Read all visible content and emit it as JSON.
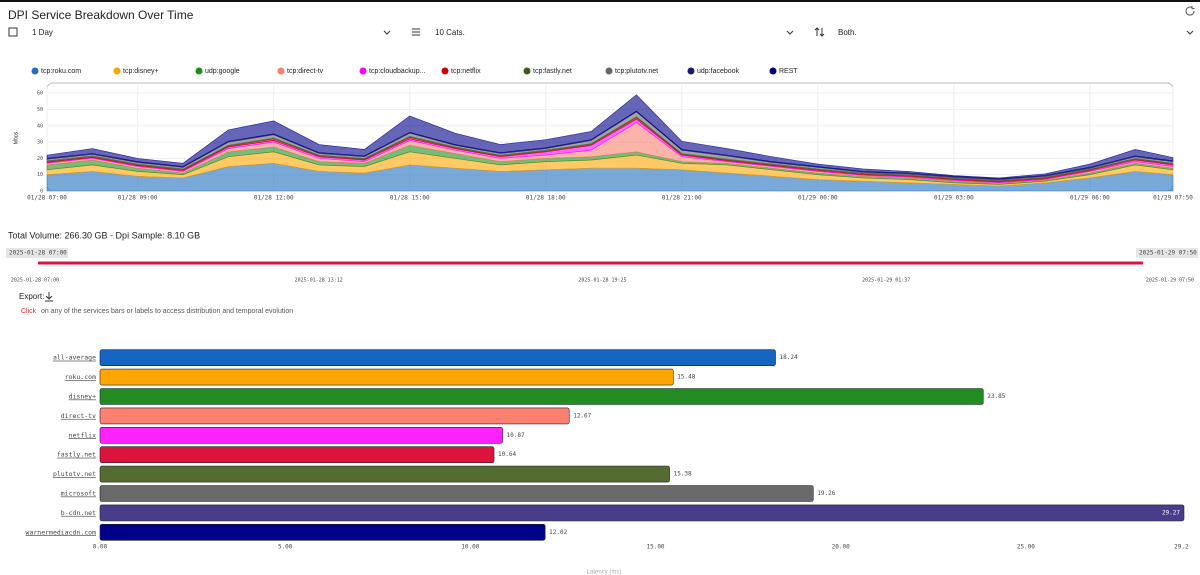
{
  "header": {
    "title": "DPI Service Breakdown Over Time",
    "period": "1 Day",
    "cats": "10 Cats.",
    "direction": "Both."
  },
  "summary": "Total Volume: 266.30 GB - Dpi Sample: 8.10 GB",
  "range": {
    "start": "2025-01-28 07:00",
    "end": "2025-01-29 07:50",
    "ticks": [
      "2025-01-28 07:00",
      "2025-01-28 13:12",
      "2025-01-28 19:25",
      "2025-01-29 01:37",
      "2025-01-29 07:50"
    ]
  },
  "export": "Export:",
  "hint": {
    "action": "Click",
    "text": "on any of the services bars or labels to access distribution and temporal evolution"
  },
  "chart_data": [
    {
      "type": "area",
      "stacked": true,
      "ylabel": "Mbps",
      "ylim": [
        0,
        65
      ],
      "yticks": [
        0,
        10,
        20,
        30,
        40,
        50,
        60
      ],
      "grid": true,
      "x": [
        "01/28 07:00",
        "01/28 08:00",
        "01/28 09:00",
        "01/28 10:00",
        "01/28 11:00",
        "01/28 12:00",
        "01/28 13:00",
        "01/28 14:00",
        "01/28 15:00",
        "01/28 16:00",
        "01/28 17:00",
        "01/28 18:00",
        "01/28 19:00",
        "01/28 20:00",
        "01/28 21:00",
        "01/28 22:00",
        "01/28 23:00",
        "01/29 00:00",
        "01/29 01:00",
        "01/29 02:00",
        "01/29 03:00",
        "01/29 04:00",
        "01/29 05:00",
        "01/29 06:00",
        "01/29 07:00",
        "01/29 07:50"
      ],
      "xticks": [
        "01/28 07:00",
        "01/28 09:00",
        "01/28 12:00",
        "01/28 15:00",
        "01/28 18:00",
        "01/28 21:00",
        "01/29 00:00",
        "01/29 03:00",
        "01/29 06:00",
        "01/29 07:50"
      ],
      "series": [
        {
          "name": "tcp:roku.com",
          "color": "#1f6fbf",
          "values": [
            10,
            12,
            9,
            8,
            15,
            17,
            12,
            11,
            16,
            14,
            12,
            13,
            14,
            14,
            13,
            11,
            9,
            7,
            6,
            5,
            4,
            3,
            5,
            8,
            12,
            10
          ]
        },
        {
          "name": "tcp:disney+",
          "color": "#ffa500",
          "values": [
            3,
            4,
            3,
            2,
            6,
            7,
            4,
            4,
            8,
            6,
            4,
            5,
            5,
            8,
            4,
            5,
            4,
            3,
            2,
            2,
            1,
            1,
            1,
            2,
            4,
            3
          ]
        },
        {
          "name": "udp:google",
          "color": "#1e8c1e",
          "values": [
            3,
            3,
            2,
            1,
            3,
            3,
            2,
            2,
            4,
            3,
            2,
            2,
            2,
            2,
            1,
            1,
            1,
            1,
            1,
            1,
            1,
            0.5,
            0.5,
            1,
            1,
            1
          ]
        },
        {
          "name": "tcp:direct-tv",
          "color": "#fa8072",
          "values": [
            1,
            1,
            1,
            1,
            2,
            3,
            2,
            1,
            3,
            2,
            2,
            2,
            4,
            18,
            3,
            1,
            1,
            1,
            0.5,
            0.5,
            0.5,
            0.5,
            0.5,
            1,
            1,
            1
          ]
        },
        {
          "name": "tcp:cloudbackup...",
          "color": "#ff00ff",
          "values": [
            0.5,
            0.5,
            0.5,
            0.5,
            1,
            1,
            1,
            1,
            1,
            1,
            1,
            2,
            3,
            2,
            1,
            0.5,
            0.5,
            0.5,
            0.5,
            0.5,
            0.5,
            0.5,
            0.5,
            0.5,
            1,
            1
          ]
        },
        {
          "name": "tcp:netflix",
          "color": "#cc0000",
          "values": [
            0.5,
            0.5,
            0.5,
            0.5,
            0.5,
            1,
            0.5,
            0.5,
            1,
            0.5,
            0.5,
            0.5,
            0.5,
            1,
            0.5,
            0.5,
            0.5,
            0.5,
            0.5,
            0.5,
            0.5,
            0.5,
            0.5,
            0.5,
            0.5,
            0.5
          ]
        },
        {
          "name": "tcp:fastly.net",
          "color": "#3d5c1f",
          "values": [
            0.5,
            0.5,
            0.5,
            0.5,
            0.5,
            0.5,
            0.5,
            0.5,
            0.5,
            0.5,
            0.5,
            0.5,
            0.5,
            0.5,
            0.5,
            0.5,
            0.5,
            0.5,
            0.5,
            0.5,
            0.5,
            0.5,
            0.5,
            0.5,
            0.5,
            0.5
          ]
        },
        {
          "name": "tcp:plutotv.net",
          "color": "#666666",
          "values": [
            1,
            1,
            1,
            1,
            2,
            2,
            1,
            1,
            2,
            1,
            1,
            1,
            2,
            3,
            2,
            2,
            1,
            1,
            0.5,
            0.5,
            0.5,
            0.5,
            0.5,
            0.5,
            1,
            1
          ]
        },
        {
          "name": "udp:facebook",
          "color": "#191970",
          "values": [
            0.5,
            0.5,
            0.5,
            0.5,
            0.5,
            0.5,
            0.5,
            0.5,
            0.5,
            0.5,
            0.5,
            0.5,
            0.5,
            0.5,
            0.5,
            0.5,
            0.5,
            0.5,
            0.5,
            0.5,
            0.5,
            0.5,
            0.5,
            0.5,
            0.5,
            0.5
          ]
        },
        {
          "name": "REST",
          "color": "#00008b",
          "values": [
            2,
            3,
            2,
            2,
            7,
            8,
            5,
            4,
            10,
            7,
            5,
            5,
            5,
            10,
            5,
            4,
            3,
            1.5,
            1.5,
            1,
            0.5,
            0.5,
            1,
            2,
            4,
            2
          ]
        }
      ]
    },
    {
      "type": "hbar",
      "xlabel": "Latency (ms)",
      "xlim": [
        0,
        29.27
      ],
      "xticks": [
        {
          "value": 0,
          "label": "0.00"
        },
        {
          "value": 5,
          "label": "5.00"
        },
        {
          "value": 10,
          "label": "10.00"
        },
        {
          "value": 15,
          "label": "15.00"
        },
        {
          "value": 20,
          "label": "20.00"
        },
        {
          "value": 25,
          "label": "25.00"
        },
        {
          "value": 29.2,
          "label": "29.2"
        }
      ],
      "categories": [
        "all-average",
        "roku.com",
        "disney+",
        "direct-tv",
        "netflix",
        "fastly.net",
        "plutotv.net",
        "microsoft",
        "b-cdn.net",
        "warnermediacdn.com"
      ],
      "values": [
        18.24,
        15.48,
        23.85,
        12.67,
        10.87,
        10.64,
        15.38,
        19.26,
        29.27,
        12.02
      ],
      "colors": [
        "#1565c0",
        "#ffa500",
        "#228b22",
        "#fa8072",
        "#ff22ff",
        "#dc143c",
        "#556b2f",
        "#696969",
        "#483d8b",
        "#00008b"
      ]
    }
  ]
}
